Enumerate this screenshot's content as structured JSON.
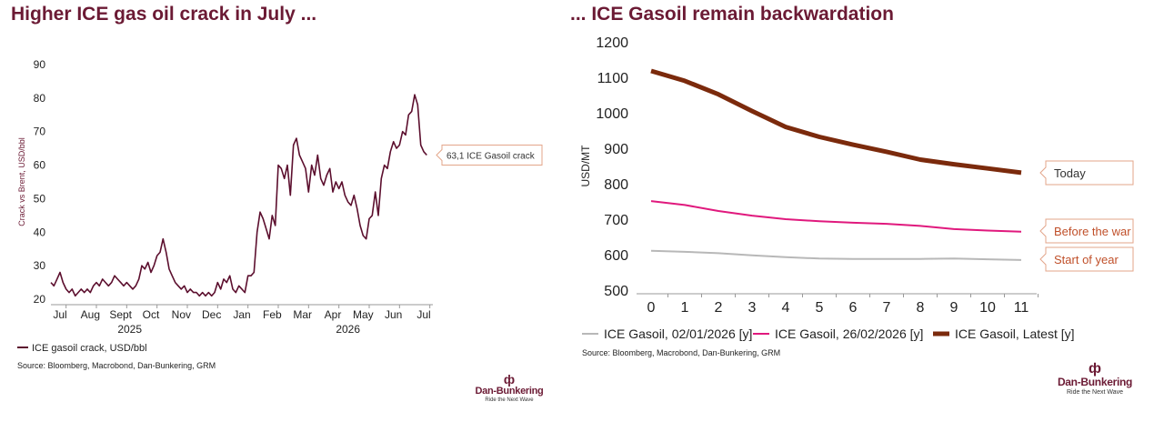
{
  "left_title": "Higher ICE gas oil crack in July ...",
  "right_title": "... ICE Gasoil remain backwardation",
  "left_source": "Source: Bloomberg, Macrobond, Dan-Bunkering, GRM",
  "right_source": "Source: Bloomberg, Macrobond, Dan-Bunkering, GRM",
  "logo": {
    "name": "Dan-Bunkering",
    "tagline": "Ride the Next Wave"
  },
  "colors": {
    "title": "#6b1a34",
    "crack_line": "#5c0f2e",
    "today": "#7b2a0c",
    "before_war": "#e0197d",
    "start_year": "#b8b8b8",
    "annotation_text": "#c0502a"
  },
  "chart_data": [
    {
      "type": "line",
      "title": "Higher ICE gas oil crack in July ...",
      "ylabel": "Crack vs Brent, USD/bbl",
      "ylim": [
        20,
        90
      ],
      "yticks": [
        20,
        30,
        40,
        50,
        60,
        70,
        80,
        90
      ],
      "month_labels": [
        "Jul",
        "Aug",
        "Sept",
        "Oct",
        "Nov",
        "Dec",
        "Jan",
        "Feb",
        "Mar",
        "Apr",
        "May",
        "Jun",
        "Jul"
      ],
      "year_labels": [
        "2025",
        "2026"
      ],
      "legend": "ICE gasoil crack, USD/bbl",
      "annotation": "63,1 ICE Gasoil crack",
      "series": [
        {
          "name": "ICE gasoil crack, USD/bbl",
          "x": [
            0.0,
            0.1,
            0.2,
            0.3,
            0.4,
            0.5,
            0.6,
            0.7,
            0.8,
            0.9,
            1.0,
            1.1,
            1.2,
            1.3,
            1.4,
            1.5,
            1.6,
            1.7,
            1.8,
            1.9,
            2.0,
            2.1,
            2.2,
            2.3,
            2.4,
            2.5,
            2.6,
            2.7,
            2.8,
            2.9,
            3.0,
            3.1,
            3.2,
            3.3,
            3.4,
            3.5,
            3.6,
            3.7,
            3.8,
            3.9,
            4.0,
            4.1,
            4.2,
            4.3,
            4.4,
            4.5,
            4.6,
            4.7,
            4.8,
            4.9,
            5.0,
            5.1,
            5.2,
            5.3,
            5.4,
            5.5,
            5.6,
            5.7,
            5.8,
            5.9,
            6.0,
            6.1,
            6.2,
            6.3,
            6.4,
            6.5,
            6.6,
            6.7,
            6.8,
            6.9,
            7.0,
            7.1,
            7.2,
            7.3,
            7.4,
            7.5,
            7.6,
            7.7,
            7.8,
            7.9,
            8.0,
            8.1,
            8.2,
            8.3,
            8.4,
            8.5,
            8.6,
            8.7,
            8.8,
            8.9,
            9.0,
            9.1,
            9.2,
            9.3,
            9.4,
            9.5,
            9.6,
            9.7,
            9.8,
            9.9,
            10.0,
            10.1,
            10.2,
            10.3,
            10.4,
            10.5,
            10.6,
            10.7,
            10.8,
            10.9,
            11.0,
            11.1,
            11.2,
            11.3,
            11.4,
            11.5,
            11.6,
            11.7,
            11.8,
            11.9,
            12.0,
            12.1,
            12.2,
            12.3,
            12.4
          ],
          "values": [
            25,
            24,
            26,
            28,
            25,
            23,
            22,
            23,
            21,
            22,
            23,
            22,
            23,
            22,
            24,
            25,
            24,
            26,
            25,
            24,
            25,
            27,
            26,
            25,
            24,
            25,
            24,
            23,
            24,
            26,
            30,
            29,
            31,
            28,
            30,
            33,
            34,
            38,
            34,
            29,
            27,
            25,
            24,
            23,
            24,
            22,
            23,
            22,
            22,
            21,
            22,
            21,
            22,
            21,
            22,
            25,
            23,
            26,
            25,
            27,
            23,
            22,
            24,
            23,
            22,
            27,
            27,
            28,
            40,
            46,
            44,
            41,
            38,
            45,
            42,
            60,
            59,
            56,
            60,
            51,
            66,
            68,
            63,
            61,
            59,
            52,
            60,
            57,
            63,
            56,
            54,
            57,
            59,
            52,
            55,
            53,
            55,
            51,
            49,
            48,
            51,
            47,
            42,
            39,
            38,
            44,
            45,
            52,
            45,
            56,
            60,
            59,
            64,
            67,
            65,
            66,
            70,
            69,
            75,
            76,
            81,
            78,
            66,
            64,
            63
          ]
        }
      ]
    },
    {
      "type": "line",
      "title": "... ICE Gasoil remain backwardation",
      "ylabel": "USD/MT",
      "ylim": [
        500,
        1200
      ],
      "yticks": [
        500,
        600,
        700,
        800,
        900,
        1000,
        1100,
        1200
      ],
      "x": [
        0,
        1,
        2,
        3,
        4,
        5,
        6,
        7,
        8,
        9,
        10,
        11
      ],
      "annotations": [
        "Today",
        "Before the war",
        "Start of year"
      ],
      "series": [
        {
          "name": "ICE Gasoil, 02/01/2026 [y]",
          "values": [
            611,
            608,
            604,
            598,
            593,
            589,
            588,
            588,
            588,
            589,
            587,
            585
          ]
        },
        {
          "name": "ICE Gasoil, 26/02/2026 [y]",
          "values": [
            751,
            740,
            723,
            710,
            700,
            694,
            690,
            687,
            681,
            672,
            668,
            665
          ]
        },
        {
          "name": "ICE Gasoil, Latest [y]",
          "values": [
            1118,
            1090,
            1052,
            1005,
            960,
            932,
            910,
            890,
            868,
            855,
            843,
            831
          ]
        }
      ]
    }
  ]
}
